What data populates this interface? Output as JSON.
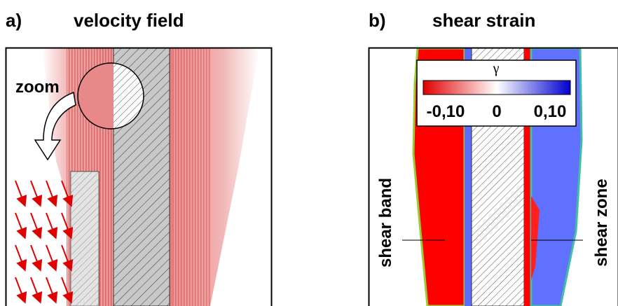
{
  "panel_a": {
    "label": "a)",
    "title": "velocity field",
    "annotation": "zoom"
  },
  "panel_b": {
    "label": "b)",
    "title": "shear strain",
    "colorbar": {
      "symbol": "γ",
      "ticks": [
        "-0,10",
        "0",
        "0,10"
      ]
    },
    "labels": [
      "shear band",
      "shear zone"
    ]
  }
}
